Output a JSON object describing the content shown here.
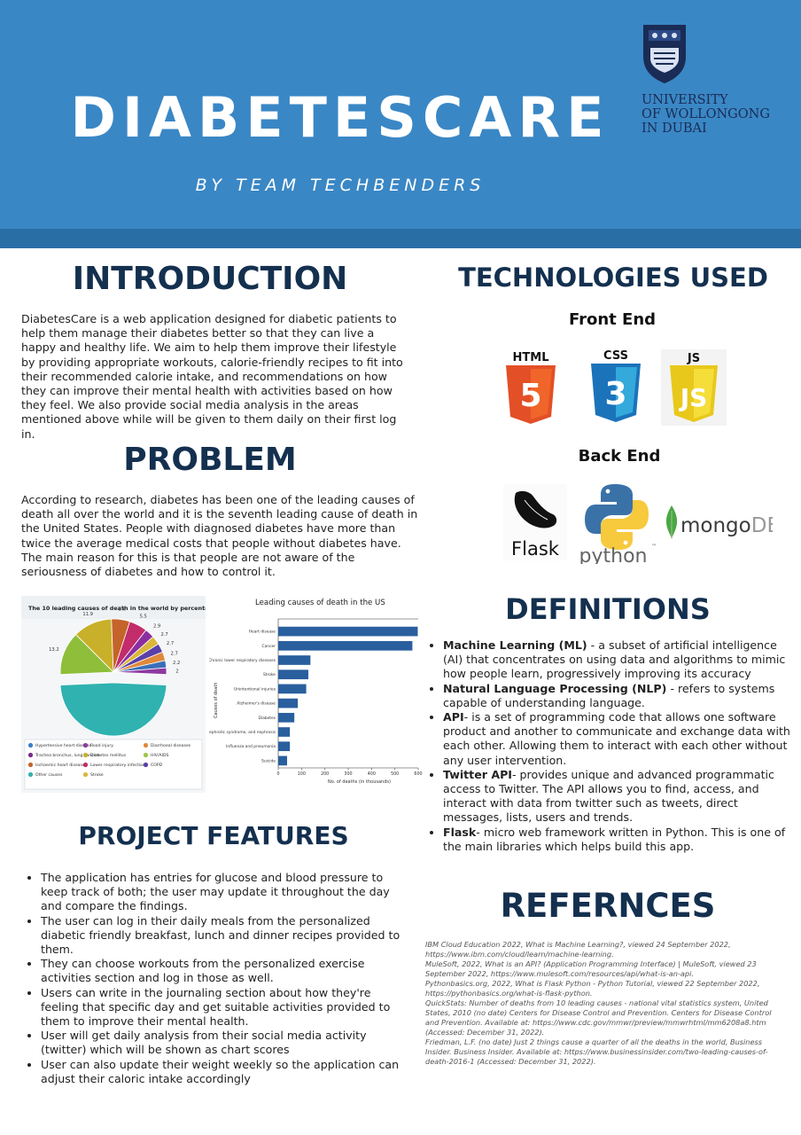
{
  "header": {
    "title": "DIABETESCARE",
    "subtitle": "BY TEAM TECHBENDERS",
    "university_lines": [
      "UNIVERSITY",
      "OF WOLLONGONG",
      "IN DUBAI"
    ]
  },
  "introduction": {
    "heading": "INTRODUCTION",
    "body": "DiabetesCare is a web application designed for diabetic patients to help them manage their diabetes better so that they can live a happy and healthy life. We aim to help them improve their lifestyle by providing appropriate workouts, calorie-friendly recipes to fit into their recommended calorie intake, and recommendations on how they can improve their mental health with activities based on how they feel. We also provide social media analysis in the areas mentioned above while will be given to them daily on their first log in."
  },
  "problem": {
    "heading": "PROBLEM",
    "body": "According to research, diabetes has been one of the leading causes of death all over the world and it is the seventh leading cause of death in the United States. People with diagnosed diabetes have more than twice the average medical costs that people without diabetes have. The main reason for this is that people are not aware of the seriousness of diabetes and how to control it."
  },
  "technologies": {
    "heading": "TECHNOLOGIES USED",
    "front_end_label": "Front End",
    "back_end_label": "Back End",
    "html_label": "HTML",
    "html_num": "5",
    "css_label": "CSS",
    "css_num": "3",
    "js_label": "JS",
    "flask_label": "Flask",
    "python_label": "python",
    "python_tm": "™",
    "mongo_label_a": "mongo",
    "mongo_label_b": "DB",
    "colors": {
      "html": "#e34f26",
      "css": "#1b73ba",
      "js": "#f0d81d",
      "navy": "#14304f",
      "header_blue": "#3a87c5"
    }
  },
  "definitions": {
    "heading": "DEFINITIONS",
    "items": [
      {
        "term": "Machine Learning (ML)",
        "text": " - a subset of artificial intelligence (AI) that concentrates on using data and algorithms to mimic how people learn, progressively improving its accuracy"
      },
      {
        "term": "Natural Language Processing (NLP)",
        "text": " - refers to systems capable of understanding language."
      },
      {
        "term": "API",
        "text": "- is a set of programming code that allows one software product and another to communicate and exchange data with each other. Allowing them to interact with each other without any user intervention."
      },
      {
        "term": "Twitter API",
        "text": "- provides unique and advanced programmatic access to Twitter. The API allows you to find, access, and interact with data from twitter such as tweets, direct messages, lists, users and trends."
      },
      {
        "term": "Flask",
        "text": "- micro web framework written in Python. This is one of the main libraries which helps build this app."
      }
    ]
  },
  "features": {
    "heading": "PROJECT FEATURES",
    "items": [
      "The application has entries for glucose and blood pressure to keep track of both; the user may update it throughout the day and compare the findings.",
      "The user can log in their daily meals from the personalized diabetic friendly breakfast, lunch and dinner recipes provided to them.",
      "They can choose workouts from the personalized exercise activities section and log in those as well.",
      "Users can write in the journaling section about how they're feeling that specific day and get suitable activities provided to them to improve their mental health.",
      "User will get daily analysis from their social media activity (twitter) which will be shown as chart scores",
      "User can also update their weight weekly so the application can adjust their caloric intake accordingly"
    ]
  },
  "references": {
    "heading": "REFERNCES",
    "items": [
      "IBM Cloud Education 2022, What is Machine Learning?, viewed 24 September 2022, https://www.ibm.com/cloud/learn/machine-learning.",
      "MuleSoft, 2022, What is an API? (Application Programming Interface) | MuleSoft, viewed 23 September 2022, https://www.mulesoft.com/resources/api/what-is-an-api.",
      "Pythonbasics.org, 2022, What is Flask Python - Python Tutorial, viewed 22 September 2022, https://pythonbasics.org/what-is-flask-python.",
      "QuickStats: Number of deaths from 10 leading causes - national vital statistics system, United States, 2010 (no date) Centers for Disease Control and Prevention. Centers for Disease Control and Prevention. Available at: https://www.cdc.gov/mmwr/preview/mmwrhtml/mm6208a8.htm (Accessed: December 31, 2022).",
      "Friedman, L.F. (no date) Just 2 things cause a quarter of all the deaths in the world, Business Insider. Business Insider. Available at: https://www.businessinsider.com/two-leading-causes-of-death-2016-1 (Accessed: December 31, 2022)."
    ]
  },
  "chart_data": [
    {
      "type": "pie",
      "title": "The 10 leading causes of death in the world by percentage",
      "slices": [
        {
          "label": "Other causes",
          "value": 48.6,
          "color": "#2fb2b0"
        },
        {
          "label": "Ischaemic heart disease",
          "value": 13.2,
          "color": "#8fbe3b"
        },
        {
          "label": "Hypertensive heart disease",
          "value": 11.9,
          "color": "#c9b02a"
        },
        {
          "label": "Stroke",
          "value": 5.6,
          "color": "#c4642a"
        },
        {
          "label": "COPD",
          "value": 5.5,
          "color": "#c32c6a"
        },
        {
          "label": "Lower respiratory infections",
          "value": 2.9,
          "color": "#8b2fa0"
        },
        {
          "label": "Trachea bronchus, lung cancers",
          "value": 2.7,
          "color": "#d8b83a"
        },
        {
          "label": "HIV/AIDS",
          "value": 2.7,
          "color": "#5a3fa8"
        },
        {
          "label": "Diarrhoeal diseases",
          "value": 2.7,
          "color": "#e0893a"
        },
        {
          "label": "Diabetes mellitus",
          "value": 2.2,
          "color": "#3a6fb8"
        },
        {
          "label": "Road injury",
          "value": 2.0,
          "color": "#8e3aa0"
        }
      ],
      "data_labels": [
        "48.6",
        "13.2",
        "11.9",
        "5.6",
        "5.5",
        "2.9",
        "2.7",
        "2.7",
        "2.7",
        "2.2",
        "2"
      ],
      "legend": [
        {
          "label": "Hypertensive heart disease",
          "color": "#3a7fc8"
        },
        {
          "label": "Road injury",
          "color": "#8e3aa0"
        },
        {
          "label": "Diarrhoeal diseases",
          "color": "#e0893a"
        },
        {
          "label": "Trachea bronchus, lung cancers",
          "color": "#7a2a8a"
        },
        {
          "label": "Diabetes mellitus",
          "color": "#c9b02a"
        },
        {
          "label": "HIV/AIDS",
          "color": "#9ec64a"
        },
        {
          "label": "Ischaemic heart disease",
          "color": "#c4642a"
        },
        {
          "label": "Lower respiratory infections",
          "color": "#c32c6a"
        },
        {
          "label": "COPD",
          "color": "#5a3fa8"
        },
        {
          "label": "Other causes",
          "color": "#2fb2b0"
        },
        {
          "label": "Stroke",
          "color": "#d8b83a"
        }
      ],
      "legend_placement": "bottom"
    },
    {
      "type": "bar",
      "orientation": "horizontal",
      "title": "Leading causes of death in the US",
      "categories": [
        "Heart disease",
        "Cancer",
        "Chronic lower respiratory diseases",
        "Stroke",
        "Unintentional injuries",
        "Alzheimer's disease",
        "Diabetes",
        "Nephritis, nephrotic syndrome, and nephrosis",
        "Influenza and pneumonia",
        "Suicide"
      ],
      "values": [
        598,
        575,
        138,
        129,
        120,
        84,
        69,
        50,
        50,
        38
      ],
      "xlabel": "No. of deaths (in thousands)",
      "ylabel": "Causes of death",
      "xlim": [
        0,
        600
      ],
      "xticks": [
        "0",
        "100",
        "200",
        "300",
        "400",
        "500",
        "600"
      ],
      "bar_color": "#2a5f9e",
      "grid": false
    }
  ]
}
